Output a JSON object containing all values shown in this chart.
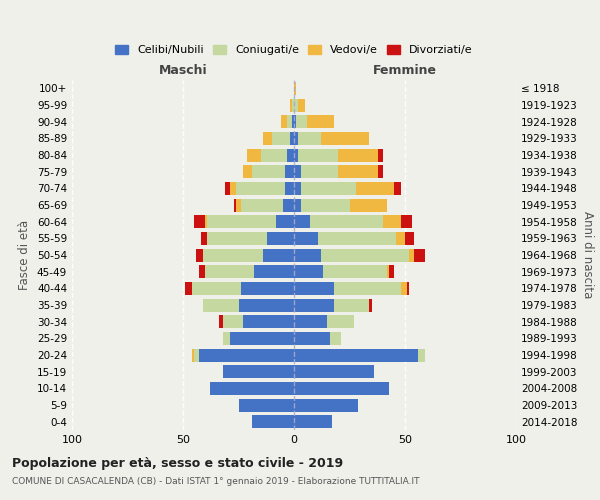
{
  "age_groups": [
    "0-4",
    "5-9",
    "10-14",
    "15-19",
    "20-24",
    "25-29",
    "30-34",
    "35-39",
    "40-44",
    "45-49",
    "50-54",
    "55-59",
    "60-64",
    "65-69",
    "70-74",
    "75-79",
    "80-84",
    "85-89",
    "90-94",
    "95-99",
    "100+"
  ],
  "birth_years": [
    "2014-2018",
    "2009-2013",
    "2004-2008",
    "1999-2003",
    "1994-1998",
    "1989-1993",
    "1984-1988",
    "1979-1983",
    "1974-1978",
    "1969-1973",
    "1964-1968",
    "1959-1963",
    "1954-1958",
    "1949-1953",
    "1944-1948",
    "1939-1943",
    "1934-1938",
    "1929-1933",
    "1924-1928",
    "1919-1923",
    "≤ 1918"
  ],
  "colors": {
    "celibi": "#4472c4",
    "coniugati": "#c5d8a0",
    "vedovi": "#f0b840",
    "divorziati": "#cc1111"
  },
  "maschi": {
    "celibi": [
      19,
      25,
      38,
      32,
      43,
      29,
      23,
      25,
      24,
      18,
      14,
      12,
      8,
      5,
      4,
      4,
      3,
      2,
      1,
      0,
      0
    ],
    "coniugati": [
      0,
      0,
      0,
      0,
      2,
      3,
      9,
      16,
      22,
      22,
      27,
      27,
      31,
      19,
      22,
      15,
      12,
      8,
      2,
      1,
      0
    ],
    "vedovi": [
      0,
      0,
      0,
      0,
      1,
      0,
      0,
      0,
      0,
      0,
      0,
      0,
      1,
      2,
      3,
      4,
      6,
      4,
      3,
      1,
      0
    ],
    "divorziati": [
      0,
      0,
      0,
      0,
      0,
      0,
      2,
      0,
      3,
      3,
      3,
      3,
      5,
      1,
      2,
      0,
      0,
      0,
      0,
      0,
      0
    ]
  },
  "femmine": {
    "celibi": [
      17,
      29,
      43,
      36,
      56,
      16,
      15,
      18,
      18,
      13,
      12,
      11,
      7,
      3,
      3,
      3,
      2,
      2,
      1,
      0,
      0
    ],
    "coniugati": [
      0,
      0,
      0,
      0,
      3,
      5,
      12,
      16,
      30,
      29,
      40,
      35,
      33,
      22,
      25,
      17,
      18,
      10,
      5,
      2,
      0
    ],
    "vedovi": [
      0,
      0,
      0,
      0,
      0,
      0,
      0,
      0,
      3,
      1,
      2,
      4,
      8,
      17,
      17,
      18,
      18,
      22,
      12,
      3,
      1
    ],
    "divorziati": [
      0,
      0,
      0,
      0,
      0,
      0,
      0,
      1,
      1,
      2,
      5,
      4,
      5,
      0,
      3,
      2,
      2,
      0,
      0,
      0,
      0
    ]
  },
  "title": "Popolazione per età, sesso e stato civile - 2019",
  "subtitle": "COMUNE DI CASACALENDA (CB) - Dati ISTAT 1° gennaio 2019 - Elaborazione TUTTITALIA.IT",
  "ylabel": "Fasce di età",
  "ylabel_right": "Anni di nascita",
  "xlabel_left": "Maschi",
  "xlabel_right": "Femmine",
  "xlim": 100,
  "bg_color": "#f0f0eb",
  "legend_labels": [
    "Celibi/Nubili",
    "Coniugati/e",
    "Vedovi/e",
    "Divorziati/e"
  ]
}
